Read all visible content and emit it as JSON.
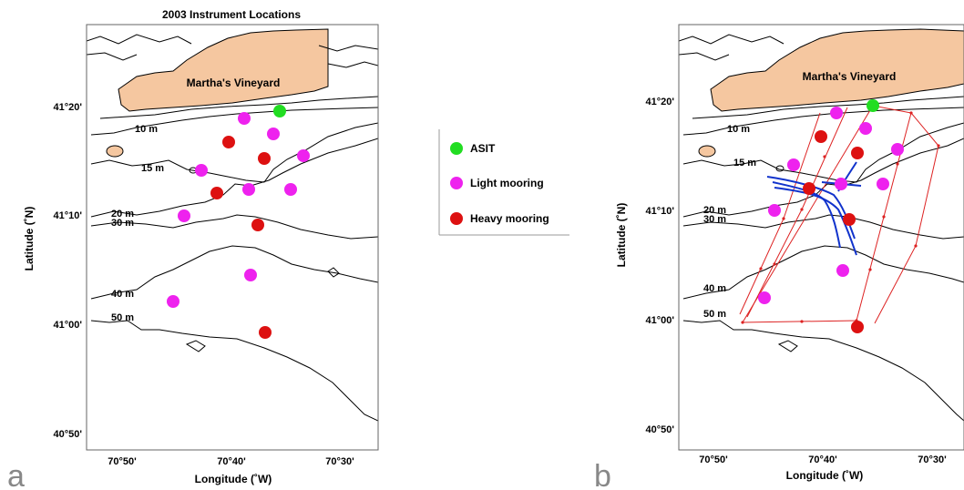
{
  "title": "2003 Instrument Locations",
  "panel_labels": [
    "a",
    "b"
  ],
  "island_label": "Martha's Vineyard",
  "x_axis_label": "Longitude (˚W)",
  "y_axis_label": "Latitude (˚N)",
  "x_ticks": [
    "70°50'",
    "70°40'",
    "70°30'"
  ],
  "y_ticks": [
    "41°20'",
    "41°10'",
    "41°00'",
    "40°50'"
  ],
  "depth_labels": [
    "10 m",
    "15 m",
    "20 m",
    "30 m",
    "40 m",
    "50 m"
  ],
  "legend": [
    {
      "label": "ASIT",
      "color": "#22dd22"
    },
    {
      "label": "Light mooring",
      "color": "#ee22ee"
    },
    {
      "label": "Heavy mooring",
      "color": "#dd1111"
    }
  ],
  "colors": {
    "land": "#f5c7a0",
    "track_red": "#dd2222",
    "track_blue": "#1133cc"
  }
}
